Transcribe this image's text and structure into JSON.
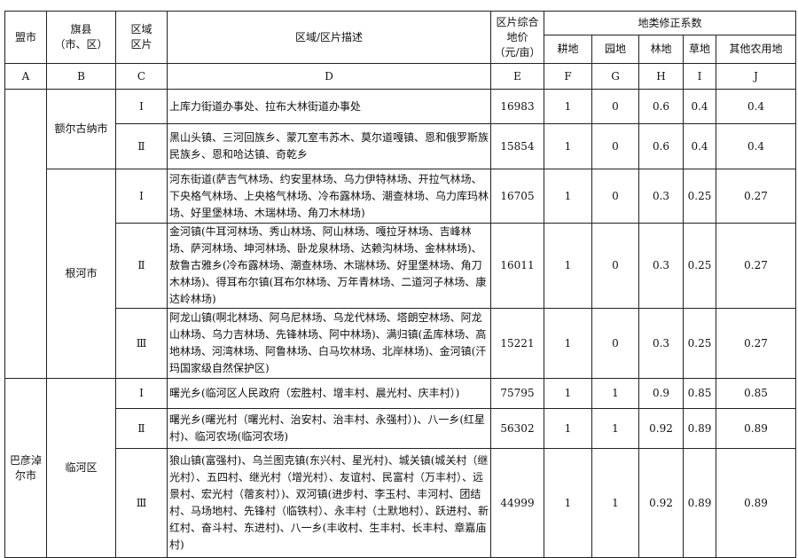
{
  "header": {
    "league_city": "盟市",
    "banner_county": [
      "旗县",
      "（市、区）"
    ],
    "zone": [
      "区域",
      "区片"
    ],
    "description": "区域/区片描述",
    "price": [
      "区片综合",
      "地价",
      "（元/亩）"
    ],
    "coef_group": "地类修正系数",
    "coef": [
      "耕地",
      "园地",
      "林地",
      "草地",
      "其他农用地"
    ]
  },
  "letters": [
    "A",
    "B",
    "C",
    "D",
    "E",
    "F",
    "G",
    "H",
    "I",
    "J"
  ],
  "groups": [
    {
      "league": "",
      "counties": [
        {
          "name": "额尔古纳市",
          "rows": [
            {
              "zone": "Ⅰ",
              "desc": "上库力街道办事处、拉布大林街道办事处",
              "price": "16983",
              "f": "1",
              "g": "0",
              "h": "0.6",
              "i": "0.4",
              "j": "0.4"
            },
            {
              "zone": "Ⅱ",
              "desc": "黑山头镇、三河回族乡、蒙兀室韦苏木、莫尔道嘎镇、恩和俄罗斯族民族乡、恩和哈达镇、奇乾乡",
              "price": "15854",
              "f": "1",
              "g": "0",
              "h": "0.6",
              "i": "0.4",
              "j": "0.4"
            }
          ]
        },
        {
          "name": "根河市",
          "rows": [
            {
              "zone": "Ⅰ",
              "desc": "河东街道(萨吉气林场、约安里林场、乌力伊特林场、开拉气林场、下央格气林场、上央格气林场、冷布露林场、潮查林场、乌力库玛林场、好里堡林场、木瑞林场、角刀木林场)",
              "price": "16705",
              "f": "1",
              "g": "0",
              "h": "0.3",
              "i": "0.25",
              "j": "0.27"
            },
            {
              "zone": "Ⅱ",
              "desc": "金河镇(牛耳河林场、秀山林场、阿山林场、嘎拉牙林场、吉峰林场、萨河林场、坤河林场、卧龙泉林场、达赖沟林场、金林林场)、敖鲁古雅乡(冷布露林场、潮查林场、木瑞林场、好里堡林场、角刀木林场)、得耳布尔镇(耳布尔林场、万年青林场、二道河子林场、康达岭林场)",
              "price": "16011",
              "f": "1",
              "g": "0",
              "h": "0.3",
              "i": "0.25",
              "j": "0.27"
            },
            {
              "zone": "Ⅲ",
              "desc": "阿龙山镇(啊北林场、阿乌尼林场、乌龙代林场、塔朗空林场、阿龙山林场、乌力吉林场、先锋林场、阿中林场)、满归镇(孟库林场、高地林场、河湾林场、阿鲁林场、白马坎林场、北岸林场)、金河镇(汗玛国家级自然保护区)",
              "price": "15221",
              "f": "1",
              "g": "0",
              "h": "0.3",
              "i": "0.25",
              "j": "0.27"
            }
          ]
        }
      ]
    },
    {
      "league": "巴彦淖尔市",
      "counties": [
        {
          "name": "临河区",
          "rows": [
            {
              "zone": "Ⅰ",
              "desc": "曙光乡(临河区人民政府（宏胜村、增丰村、晨光村、庆丰村）)",
              "price": "75795",
              "f": "1",
              "g": "1",
              "h": "0.9",
              "i": "0.85",
              "j": "0.85"
            },
            {
              "zone": "Ⅱ",
              "desc": "曙光乡(曙光村（曙光村、治安村、治丰村、永强村）)、八一乡(红星村)、临河农场(临河农场)",
              "price": "56302",
              "f": "1",
              "g": "1",
              "h": "0.92",
              "i": "0.89",
              "j": "0.89"
            },
            {
              "zone": "Ⅲ",
              "desc": "狼山镇(富强村)、乌兰图克镇(东兴村、星光村)、城关镇(城关村（继光村）、五四村、继光村（增光村）、友谊村、民富村（万丰村）、远景村、宏光村（蓿亥村）)、双河镇(进步村、李玉村、丰河村、团结村、马场地村、先锋村（临铁村）、永丰村（土默地村）、跃进村、新红村、奋斗村、东进村)、八一乡(丰收村、生丰村、长丰村、章嘉庙村)",
              "price": "44999",
              "f": "1",
              "g": "1",
              "h": "0.92",
              "i": "0.89",
              "j": "0.89"
            }
          ]
        }
      ]
    }
  ]
}
